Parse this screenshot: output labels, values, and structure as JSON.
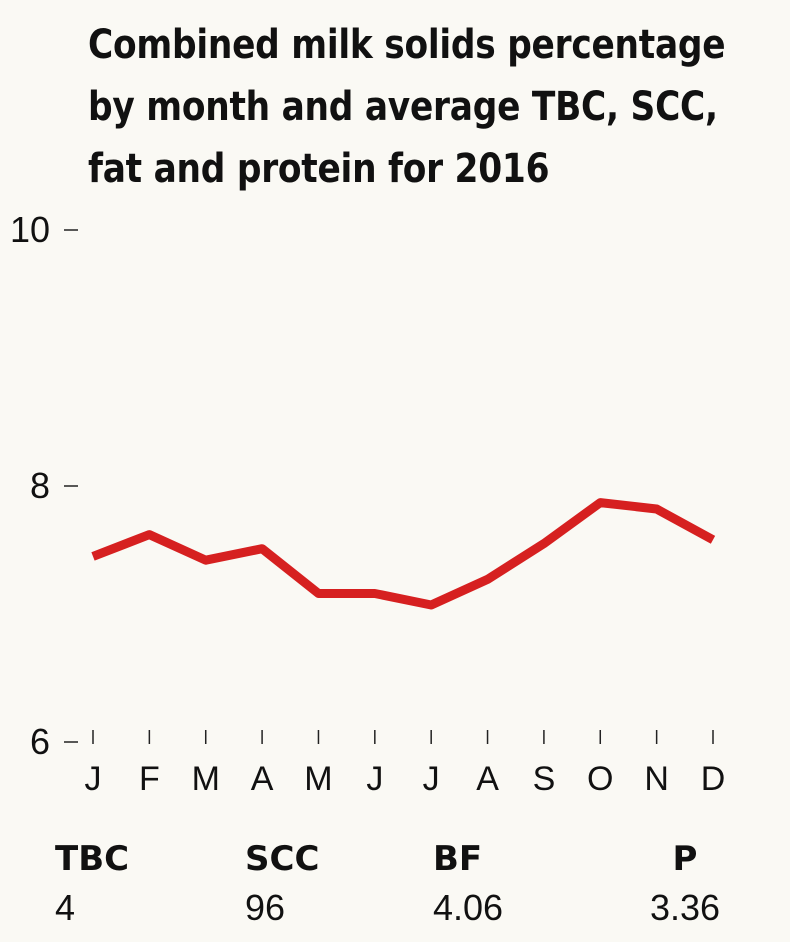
{
  "title_lines": [
    "Combined milk solids percentage",
    "by month and average TBC, SCC,",
    "fat and protein for 2016"
  ],
  "stats": [
    {
      "label": "TBC",
      "value": "4"
    },
    {
      "label": "SCC",
      "value": "96"
    },
    {
      "label": "BF",
      "value": "4.06"
    },
    {
      "label": "P",
      "value": "3.36"
    }
  ],
  "chart_data": {
    "type": "line",
    "title": "Combined milk solids percentage by month and average TBC, SCC, fat and protein for 2016",
    "categories": [
      "J",
      "F",
      "M",
      "A",
      "M",
      "J",
      "J",
      "A",
      "S",
      "O",
      "N",
      "D"
    ],
    "series": [
      {
        "values": [
          7.45,
          7.62,
          7.42,
          7.51,
          7.16,
          7.16,
          7.07,
          7.27,
          7.55,
          7.87,
          7.82,
          7.58
        ]
      }
    ],
    "ylim": [
      6,
      10
    ],
    "yticks": [
      "10",
      "8",
      "6"
    ],
    "xlabel": "",
    "ylabel": "",
    "line_color": "#d62020",
    "grid": false
  }
}
